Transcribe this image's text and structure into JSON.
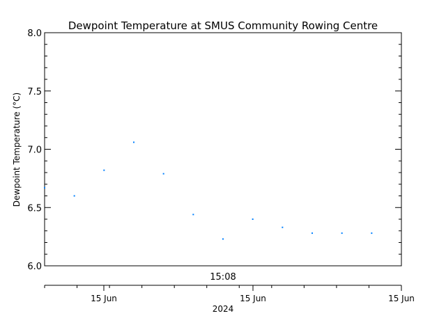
{
  "chart_data": {
    "type": "scatter",
    "title": "Dewpoint Temperature at SMUS Community Rowing Centre",
    "ylabel": "Dewpoint Temperature (°C)",
    "ylim": [
      6.0,
      8.0
    ],
    "y_major_ticks": [
      6.0,
      6.5,
      7.0,
      7.5,
      8.0
    ],
    "y_tick_labels": [
      "6.0",
      "6.5",
      "7.0",
      "7.5",
      "8.0"
    ],
    "y_minor_step": 0.1,
    "time_label": "15:08",
    "x_tick_labels": [
      "15 Jun",
      "15 Jun",
      "15 Jun"
    ],
    "x_sub_label": "2024",
    "x_minor_ticks": 11,
    "grid": false,
    "marker_color": "#0080ff",
    "series": [
      {
        "points": [
          {
            "x": 0,
            "y": 6.67
          },
          {
            "x": 1,
            "y": 6.6
          },
          {
            "x": 2,
            "y": 6.82
          },
          {
            "x": 3,
            "y": 7.06
          },
          {
            "x": 4,
            "y": 6.79
          },
          {
            "x": 5,
            "y": 6.44
          },
          {
            "x": 6,
            "y": 6.23
          },
          {
            "x": 7,
            "y": 6.4
          },
          {
            "x": 8,
            "y": 6.33
          },
          {
            "x": 9,
            "y": 6.28
          },
          {
            "x": 10,
            "y": 6.28
          },
          {
            "x": 11,
            "y": 6.28
          }
        ]
      }
    ]
  }
}
